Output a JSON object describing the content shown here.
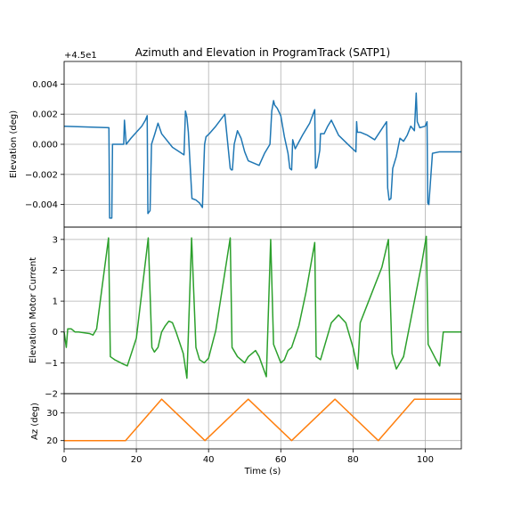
{
  "chart_data": {
    "type": "line",
    "title": "Azimuth and Elevation in ProgramTrack (SATP1)",
    "xlabel": "Time (s)",
    "xlim": [
      0,
      110
    ],
    "xticks": [
      "0",
      "20",
      "40",
      "60",
      "80",
      "100"
    ],
    "grid": true,
    "panels": [
      {
        "ylabel": "Elevation (deg)",
        "offset_text": "+4.5e1",
        "ylim": [
          -0.0055,
          0.0055
        ],
        "yticks": [
          {
            "v": 0.004,
            "label": "0.004"
          },
          {
            "v": 0.002,
            "label": "0.002"
          },
          {
            "v": 0.0,
            "label": "0.000"
          },
          {
            "v": -0.002,
            "label": "−0.002"
          },
          {
            "v": -0.004,
            "label": "−0.004"
          }
        ],
        "color": "#1f77b4",
        "x": [
          0,
          12.4,
          12.6,
          13.2,
          13.4,
          16.5,
          16.7,
          17.2,
          18.5,
          20.0,
          21.5,
          22.5,
          23.0,
          23.2,
          23.8,
          24.2,
          25.0,
          26.0,
          27.0,
          30.0,
          33.2,
          33.6,
          34.0,
          34.4,
          35.4,
          36.5,
          37.5,
          38.3,
          38.6,
          38.9,
          39.3,
          40.2,
          42.0,
          44.5,
          46.0,
          46.3,
          46.6,
          47.1,
          47.6,
          48.0,
          49.0,
          50.0,
          51.0,
          54.0,
          55.5,
          57.0,
          57.5,
          58.0,
          58.3,
          59.0,
          60.0,
          61.0,
          62.0,
          62.5,
          63.0,
          63.3,
          64.0,
          66.0,
          68.0,
          69.4,
          69.6,
          70.0,
          70.8,
          71.0,
          72.0,
          73.0,
          74.0,
          76.0,
          79.0,
          80.8,
          81.0,
          81.2,
          82.0,
          84.0,
          86.0,
          89.3,
          89.6,
          90.0,
          90.5,
          91.0,
          92.0,
          93.0,
          94.0,
          95.0,
          96.0,
          97.0,
          97.5,
          97.8,
          98.5,
          100.0,
          100.5,
          100.7,
          101.0,
          102.0,
          104.0,
          110.0
        ],
        "y": [
          0.0012,
          0.0011,
          -0.0049,
          -0.0049,
          0.0,
          0.0,
          0.0016,
          0.0,
          0.0004,
          0.0008,
          0.0012,
          0.0016,
          0.0019,
          -0.0046,
          -0.0044,
          0.0,
          0.0006,
          0.0014,
          0.0007,
          -0.0002,
          -0.0007,
          0.0022,
          0.0018,
          0.0008,
          -0.0036,
          -0.0037,
          -0.0039,
          -0.0042,
          -0.002,
          0.0,
          0.0005,
          0.0007,
          0.0012,
          0.002,
          -0.0016,
          -0.0017,
          -0.0017,
          0.0,
          0.0005,
          0.0009,
          0.0004,
          -0.0005,
          -0.0011,
          -0.0014,
          -0.0006,
          0.0,
          0.0022,
          0.0029,
          0.0026,
          0.0024,
          0.0019,
          0.0005,
          -0.0006,
          -0.0016,
          -0.0017,
          0.0003,
          -0.0003,
          0.0006,
          0.0014,
          0.0023,
          -0.0016,
          -0.0015,
          -0.0004,
          0.0007,
          0.0007,
          0.0012,
          0.0016,
          0.0006,
          -0.0001,
          -0.0005,
          0.0015,
          0.0008,
          0.0008,
          0.0006,
          0.0003,
          0.0015,
          -0.0029,
          -0.0037,
          -0.0036,
          -0.0016,
          -0.0008,
          0.0004,
          0.0002,
          0.0006,
          0.0012,
          0.0009,
          0.0034,
          0.0015,
          0.0011,
          0.0012,
          0.0015,
          -0.0039,
          -0.004,
          -0.0006,
          -0.0005,
          -0.0005
        ]
      },
      {
        "ylabel": "Elevation Motor Current",
        "ylim": [
          -2.0,
          3.4
        ],
        "yticks": [
          {
            "v": 3,
            "label": "3"
          },
          {
            "v": 2,
            "label": "2"
          },
          {
            "v": 1,
            "label": "1"
          },
          {
            "v": 0,
            "label": "0"
          },
          {
            "v": -1,
            "label": "−1"
          },
          {
            "v": -2,
            "label": "−2"
          }
        ],
        "color": "#2ca02c",
        "x": [
          0,
          0.6,
          1.0,
          2.0,
          3.0,
          4.0,
          7.0,
          8.0,
          9.0,
          12.3,
          12.8,
          14.0,
          16.5,
          17.5,
          20.0,
          23.3,
          24.3,
          25.0,
          26.0,
          27.0,
          28.0,
          29.0,
          30.0,
          31.0,
          33.0,
          34.0,
          35.3,
          36.5,
          37.5,
          38.8,
          40.0,
          42.0,
          46.0,
          46.5,
          48.0,
          50.0,
          51.0,
          53.0,
          54.0,
          56.0,
          57.2,
          58.0,
          59.0,
          60.0,
          61.0,
          62.0,
          63.0,
          65.0,
          67.0,
          69.4,
          69.8,
          71.0,
          73.0,
          74.0,
          76.0,
          78.0,
          80.0,
          81.3,
          82.0,
          85.0,
          88.0,
          89.8,
          90.8,
          92.0,
          94.0,
          96.0,
          99.0,
          100.3,
          100.8,
          103.0,
          104.0,
          105.0,
          108.0,
          110.0
        ],
        "y": [
          0.0,
          -0.5,
          0.1,
          0.1,
          0.0,
          0.0,
          -0.05,
          -0.1,
          0.1,
          3.05,
          -0.8,
          -0.9,
          -1.05,
          -1.1,
          -0.2,
          3.05,
          -0.5,
          -0.65,
          -0.5,
          0.0,
          0.2,
          0.35,
          0.3,
          0.0,
          -0.7,
          -1.5,
          3.05,
          -0.5,
          -0.9,
          -1.0,
          -0.85,
          0.05,
          3.05,
          -0.5,
          -0.8,
          -1.0,
          -0.8,
          -0.6,
          -0.8,
          -1.45,
          3.0,
          -0.4,
          -0.7,
          -1.0,
          -0.9,
          -0.6,
          -0.5,
          0.2,
          1.3,
          2.9,
          -0.8,
          -0.9,
          -0.1,
          0.3,
          0.55,
          0.3,
          -0.5,
          -1.2,
          0.3,
          1.2,
          2.1,
          3.0,
          -0.7,
          -1.2,
          -0.8,
          0.4,
          2.2,
          3.1,
          -0.4,
          -0.9,
          -1.1,
          0.0,
          0.0,
          0.0
        ]
      },
      {
        "ylabel": "Az (deg)",
        "ylim": [
          17,
          37
        ],
        "yticks": [
          {
            "v": 30,
            "label": "30"
          },
          {
            "v": 20,
            "label": "20"
          }
        ],
        "color": "#ff7f0e",
        "x": [
          0,
          17,
          27,
          39,
          51,
          63,
          75,
          87,
          97,
          110
        ],
        "y": [
          20,
          20,
          35,
          20,
          35,
          20,
          35,
          20,
          35,
          35
        ]
      }
    ]
  }
}
